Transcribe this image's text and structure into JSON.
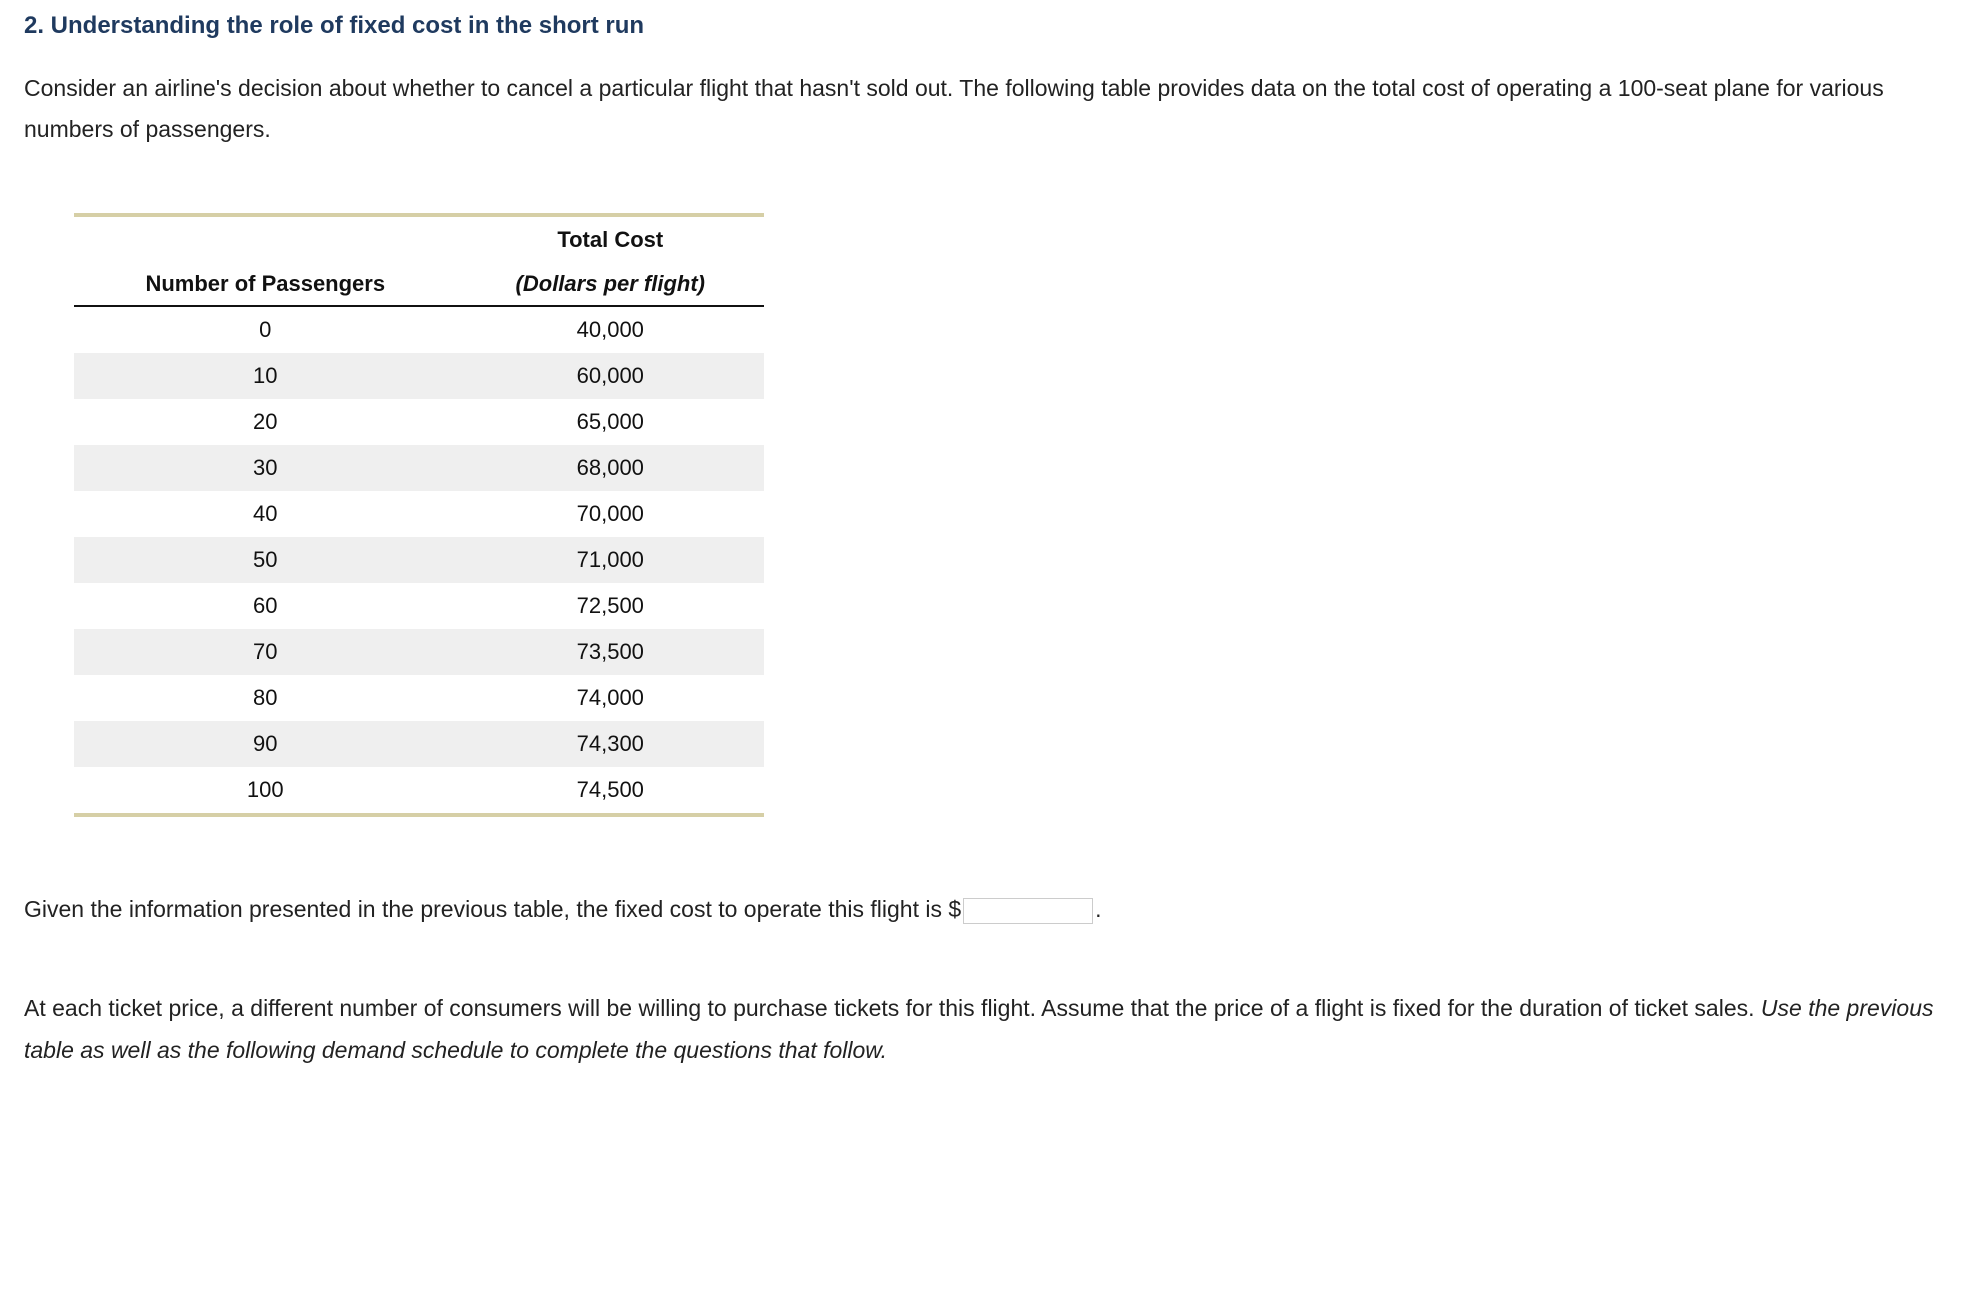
{
  "heading": "2. Understanding the role of fixed cost in the short run",
  "intro_text": "Consider an airline's decision about whether to cancel a particular flight that hasn't sold out. The following table provides data on the total cost of operating a 100-seat plane for various numbers of passengers.",
  "cost_table": {
    "type": "table",
    "col1_header": "Number of Passengers",
    "col2_header_top": "Total Cost",
    "col2_header_unit": "(Dollars per flight)",
    "columns": [
      "Number of Passengers",
      "Total Cost (Dollars per flight)"
    ],
    "rows": [
      [
        "0",
        "40,000"
      ],
      [
        "10",
        "60,000"
      ],
      [
        "20",
        "65,000"
      ],
      [
        "30",
        "68,000"
      ],
      [
        "40",
        "70,000"
      ],
      [
        "50",
        "71,000"
      ],
      [
        "60",
        "72,500"
      ],
      [
        "70",
        "73,500"
      ],
      [
        "80",
        "74,000"
      ],
      [
        "90",
        "74,300"
      ],
      [
        "100",
        "74,500"
      ]
    ],
    "border_color": "#d6cfa6",
    "stripe_color": "#efefef",
    "background_color": "#ffffff",
    "text_color": "#111111",
    "header_fontsize": 22,
    "cell_fontsize": 22,
    "col_align": [
      "center",
      "center"
    ]
  },
  "fixed_cost_sentence": {
    "before": "Given the information presented in the previous table, the fixed cost to operate this flight is $",
    "after": ".",
    "input_value": ""
  },
  "demand_para": {
    "plain": "At each ticket price, a different number of consumers will be willing to purchase tickets for this flight. Assume that the price of a flight is fixed for the duration of ticket sales. ",
    "italic": "Use the previous table as well as the following demand schedule to complete the questions that follow."
  },
  "colors": {
    "heading": "#1f3a5f",
    "body_text": "#222222",
    "table_rule": "#d6cfa6",
    "input_border": "#cccccc",
    "background": "#ffffff"
  },
  "typography": {
    "heading_fontsize": 24,
    "body_fontsize": 23,
    "font_family": "Verdana"
  }
}
